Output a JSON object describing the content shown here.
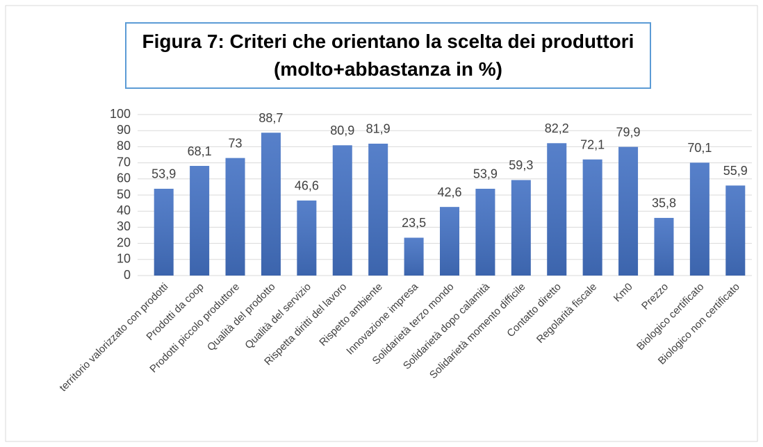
{
  "chart_data": {
    "type": "bar",
    "title": "Figura 7: Criteri che orientano la scelta dei produttori (molto+abbastanza in %)",
    "categories": [
      "territorio valorizzato con prodotti",
      "Prodotti da coop",
      "Prodotti piccolo produttore",
      "Qualità del prodotto",
      "Qualità del servizio",
      "Rispetta diritti del lavoro",
      "Rispetto ambiente",
      "Innovazione impresa",
      "Solidarietà terzo mondo",
      "Solidarietà dopo calamità",
      "Solidarietà momento difficile",
      "Contatto diretto",
      "Regolarità fiscale",
      "Km0",
      "Prezzo",
      "Biologico certificato",
      "Biologico non certificato"
    ],
    "values": [
      53.9,
      68.1,
      73,
      88.7,
      46.6,
      80.9,
      81.9,
      23.5,
      42.6,
      53.9,
      59.3,
      82.2,
      72.1,
      79.9,
      35.8,
      70.1,
      55.9
    ],
    "value_labels": [
      "53,9",
      "68,1",
      "73",
      "88,7",
      "46,6",
      "80,9",
      "81,9",
      "23,5",
      "42,6",
      "53,9",
      "59,3",
      "82,2",
      "72,1",
      "79,9",
      "35,8",
      "70,1",
      "55,9"
    ],
    "color": "#4472c4",
    "ylim": [
      0,
      100
    ],
    "yticks": [
      0,
      10,
      20,
      30,
      40,
      50,
      60,
      70,
      80,
      90,
      100
    ],
    "grid": true
  }
}
